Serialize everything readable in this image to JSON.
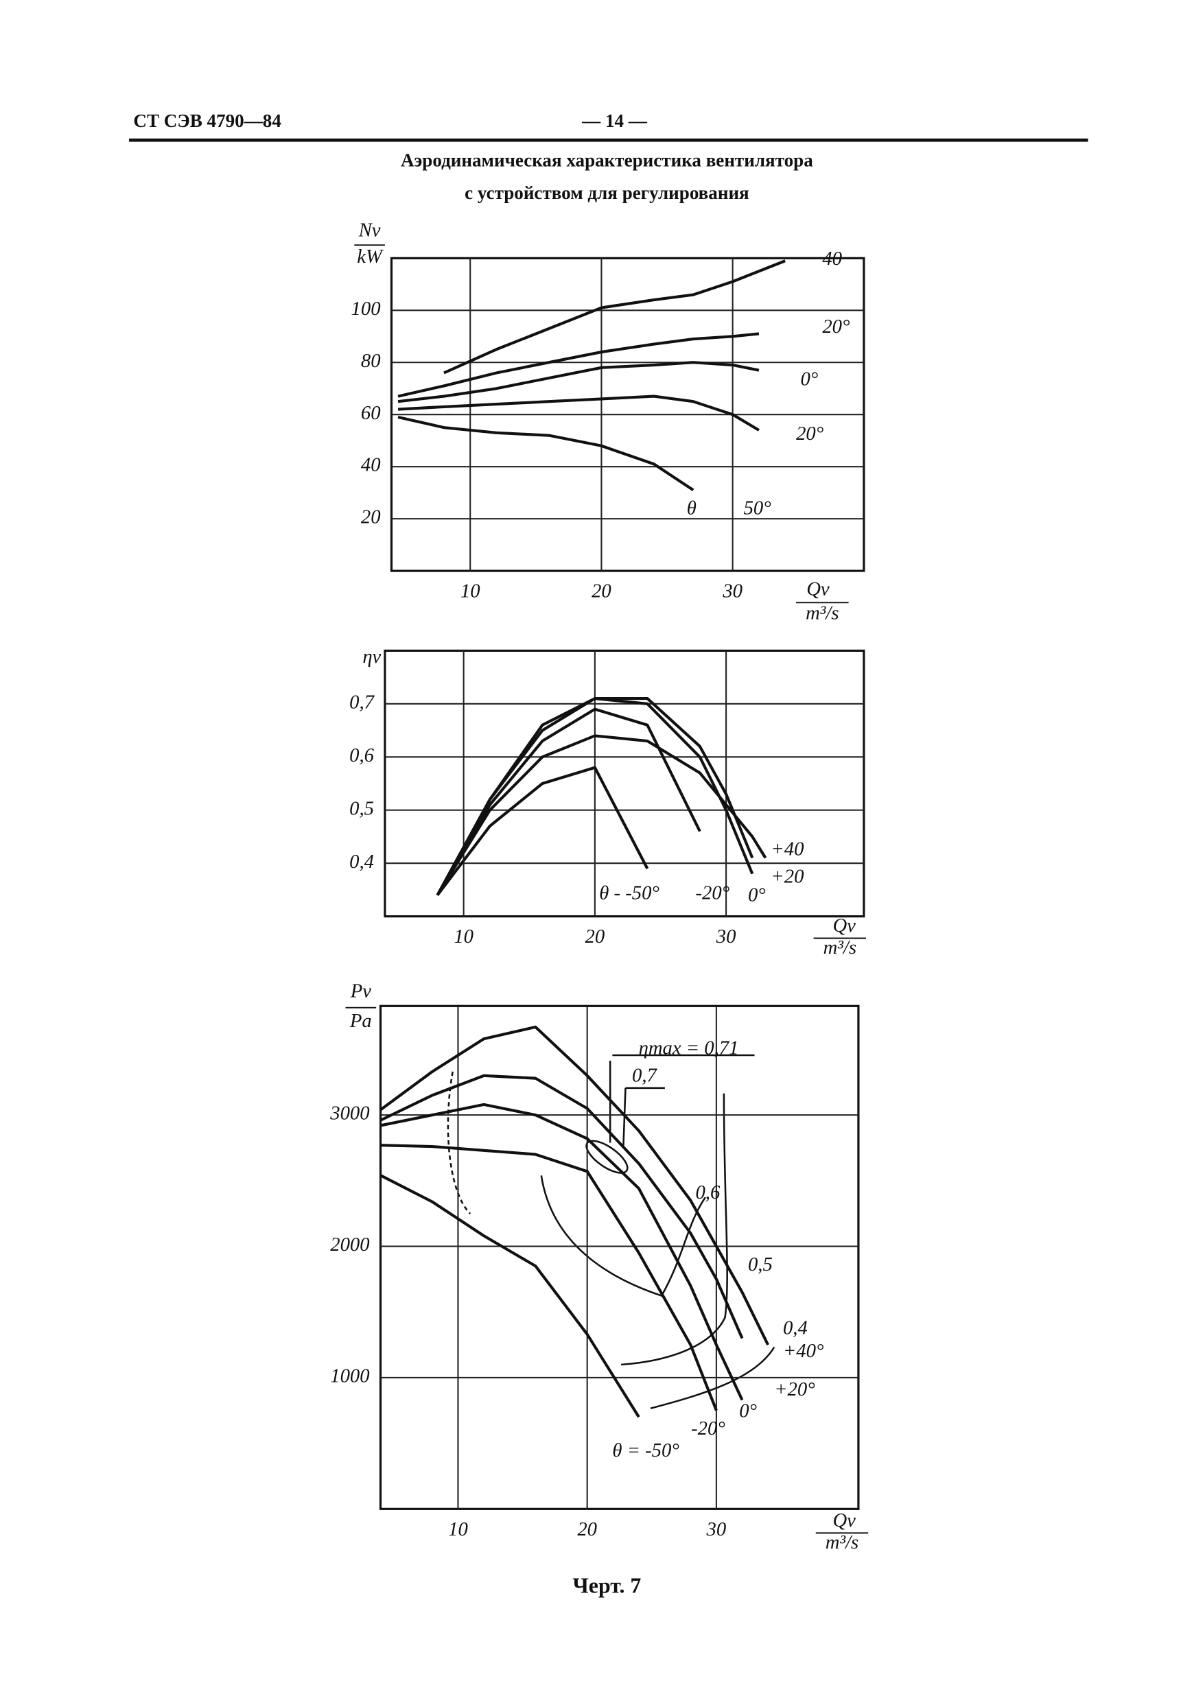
{
  "header": {
    "code": "СТ СЭВ 4790—84",
    "page": "— 14 —"
  },
  "title": [
    "Аэродинамическая характеристика вентилятора",
    "с устройством для регулирования"
  ],
  "chart_data": [
    {
      "type": "line",
      "y_label": "Nv",
      "y_unit": "kW",
      "x_label": "Qv",
      "x_unit": "m³/s",
      "x": [
        4.5,
        8,
        12,
        16,
        20,
        24,
        27,
        30,
        32,
        34
      ],
      "series": [
        {
          "name": "40",
          "color": "#111111",
          "values": [
            null,
            76,
            85,
            93,
            101,
            104,
            106,
            111,
            115,
            119
          ]
        },
        {
          "name": "20°",
          "color": "#111111",
          "values": [
            67,
            71,
            76,
            80,
            84,
            87,
            89,
            90,
            91,
            null
          ]
        },
        {
          "name": "0°",
          "color": "#111111",
          "values": [
            65,
            67,
            70,
            74,
            78,
            79,
            80,
            79,
            77,
            null
          ]
        },
        {
          "name": "20°",
          "color": "#111111",
          "values": [
            62,
            63,
            64,
            65,
            66,
            67,
            65,
            60,
            54,
            null
          ]
        },
        {
          "name": "50°",
          "color": "#111111",
          "values": [
            59,
            55,
            53,
            52,
            48,
            41,
            31,
            null,
            null,
            null
          ]
        }
      ],
      "annotations": [
        "θ"
      ],
      "xlim": [
        4,
        40
      ],
      "ylim": [
        0,
        120
      ],
      "xticks": [
        10,
        20,
        30
      ],
      "yticks": [
        20,
        40,
        60,
        80,
        100
      ],
      "grid": true
    },
    {
      "type": "line",
      "y_label": "ηv",
      "x_label": "Qv",
      "x_unit": "m³/s",
      "x": [
        8,
        12,
        16,
        20,
        24,
        28,
        30,
        32,
        33
      ],
      "series": [
        {
          "name": "θ - -50°",
          "color": "#111111",
          "values": [
            0.34,
            0.47,
            0.55,
            0.58,
            0.39,
            null,
            null,
            null,
            null
          ]
        },
        {
          "name": "-20°",
          "color": "#111111",
          "values": [
            0.34,
            0.51,
            0.63,
            0.69,
            0.66,
            0.46,
            null,
            null,
            null
          ]
        },
        {
          "name": "0°",
          "color": "#111111",
          "values": [
            0.34,
            0.52,
            0.65,
            0.71,
            0.7,
            0.6,
            0.5,
            0.38,
            null
          ]
        },
        {
          "name": "+20",
          "color": "#111111",
          "values": [
            0.34,
            0.52,
            0.66,
            0.71,
            0.71,
            0.62,
            0.53,
            0.41,
            null
          ]
        },
        {
          "name": "+40",
          "color": "#111111",
          "values": [
            0.34,
            0.5,
            0.6,
            0.64,
            0.63,
            0.57,
            0.51,
            0.45,
            0.41
          ]
        }
      ],
      "annotations": [],
      "xlim": [
        4,
        40.5
      ],
      "ylim": [
        0.3,
        0.8
      ],
      "xticks": [
        10,
        20,
        30
      ],
      "yticks": [
        {
          "value": 0.4,
          "label": "0,4"
        },
        {
          "value": 0.5,
          "label": "0,5"
        },
        {
          "value": 0.6,
          "label": "0,6"
        },
        {
          "value": 0.7,
          "label": "0,7"
        }
      ],
      "grid": true
    },
    {
      "type": "line",
      "y_label": "Pv",
      "y_unit": "Pa",
      "x_label": "Qv",
      "x_unit": "m³/s",
      "x": [
        4,
        8,
        12,
        16,
        20,
        24,
        28,
        30,
        32,
        34
      ],
      "series": [
        {
          "name": "+40°",
          "color": "#111111",
          "values": [
            3040,
            3330,
            3580,
            3670,
            3300,
            2880,
            2350,
            2000,
            1650,
            1250
          ]
        },
        {
          "name": "+20°",
          "color": "#111111",
          "values": [
            2960,
            3150,
            3300,
            3280,
            3050,
            2630,
            2100,
            1750,
            1300,
            null
          ]
        },
        {
          "name": "0°",
          "color": "#111111",
          "values": [
            2920,
            3000,
            3080,
            3000,
            2820,
            2440,
            1700,
            1250,
            830,
            null
          ]
        },
        {
          "name": "-20°",
          "color": "#111111",
          "values": [
            2770,
            2760,
            2730,
            2700,
            2570,
            1950,
            1250,
            750,
            null,
            null
          ]
        },
        {
          "name": "θ = -50°",
          "color": "#111111",
          "values": [
            2540,
            2340,
            2080,
            1850,
            1330,
            700,
            null,
            null,
            null,
            null
          ]
        }
      ],
      "annotations": [
        "ηmax = 0,71",
        "0,7",
        "0,6",
        "0,5",
        "0,4"
      ],
      "xlim": [
        4,
        41
      ],
      "ylim": [
        0,
        3830
      ],
      "xticks": [
        10,
        20,
        30
      ],
      "yticks": [
        1000,
        2000,
        3000
      ],
      "grid": true
    }
  ],
  "caption": "Черт. 7"
}
